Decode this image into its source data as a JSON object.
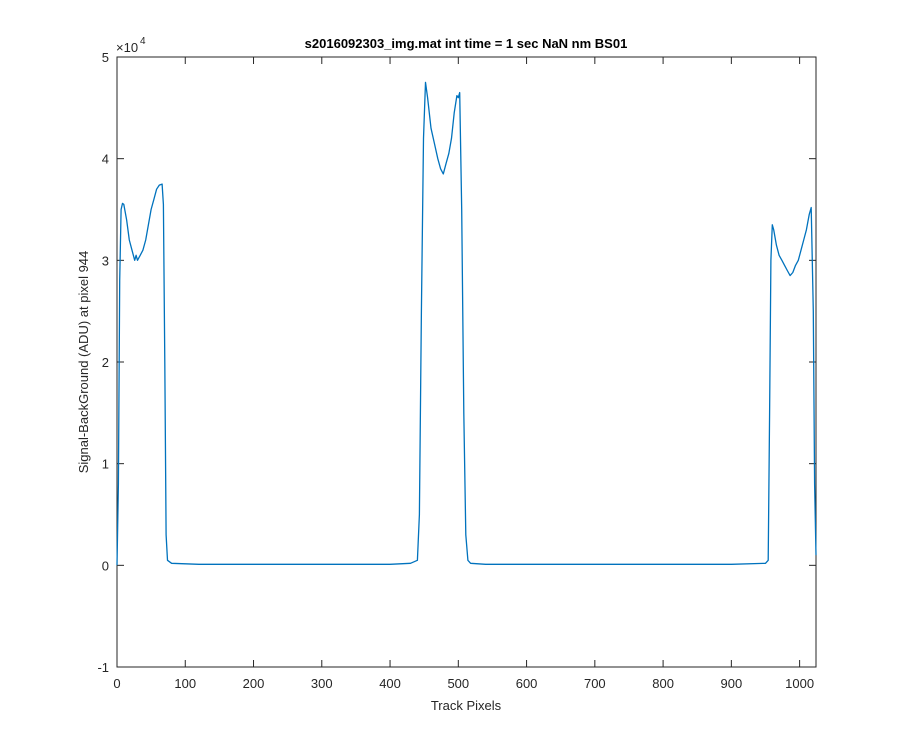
{
  "chart_data": {
    "type": "line",
    "title": "s2016092303_img.mat int time = 1 sec  NaN nm BS01",
    "xlabel": "Track Pixels",
    "ylabel": "Signal-BackGround (ADU) at pixel 944",
    "y_multiplier_label": "×10",
    "y_multiplier_exponent": "4",
    "xlim": [
      0,
      1024
    ],
    "ylim": [
      -1,
      5
    ],
    "y_scale_factor": 10000,
    "x_ticks": [
      0,
      100,
      200,
      300,
      400,
      500,
      600,
      700,
      800,
      900,
      1000
    ],
    "x_tick_labels": [
      "0",
      "100",
      "200",
      "300",
      "400",
      "500",
      "600",
      "700",
      "800",
      "900",
      "1000"
    ],
    "y_ticks": [
      -1,
      0,
      1,
      2,
      3,
      4,
      5
    ],
    "y_tick_labels": [
      "-1",
      "0",
      "1",
      "2",
      "3",
      "4",
      "5"
    ],
    "grid": false,
    "line_color": "#0072BD",
    "series": [
      {
        "x": [
          0,
          2,
          4,
          6,
          8,
          10,
          14,
          18,
          22,
          26,
          28,
          30,
          34,
          38,
          42,
          46,
          50,
          54,
          58,
          62,
          66,
          68,
          70,
          72,
          74,
          80,
          120,
          200,
          300,
          400,
          430,
          440,
          443,
          446,
          449,
          452,
          455,
          460,
          465,
          470,
          474,
          478,
          482,
          486,
          490,
          494,
          498,
          500,
          502,
          505,
          508,
          511,
          514,
          518,
          540,
          600,
          700,
          800,
          900,
          950,
          954,
          956,
          958,
          960,
          962,
          966,
          970,
          974,
          978,
          982,
          986,
          990,
          994,
          998,
          1002,
          1006,
          1010,
          1014,
          1017,
          1020,
          1022,
          1024
        ],
        "y": [
          0,
          0.8,
          2.8,
          3.5,
          3.56,
          3.55,
          3.4,
          3.2,
          3.1,
          3.0,
          3.05,
          3.0,
          3.05,
          3.1,
          3.2,
          3.35,
          3.5,
          3.6,
          3.7,
          3.74,
          3.75,
          3.55,
          2.0,
          0.3,
          0.05,
          0.02,
          0.01,
          0.01,
          0.01,
          0.01,
          0.02,
          0.05,
          0.5,
          2.5,
          4.2,
          4.75,
          4.6,
          4.3,
          4.15,
          4.0,
          3.9,
          3.85,
          3.95,
          4.05,
          4.2,
          4.45,
          4.62,
          4.6,
          4.65,
          3.5,
          1.5,
          0.3,
          0.05,
          0.02,
          0.01,
          0.01,
          0.01,
          0.01,
          0.01,
          0.02,
          0.05,
          1.5,
          3.0,
          3.35,
          3.3,
          3.15,
          3.05,
          3.0,
          2.95,
          2.9,
          2.85,
          2.88,
          2.95,
          3.0,
          3.1,
          3.2,
          3.3,
          3.45,
          3.52,
          2.5,
          0.8,
          0.1
        ]
      }
    ]
  }
}
